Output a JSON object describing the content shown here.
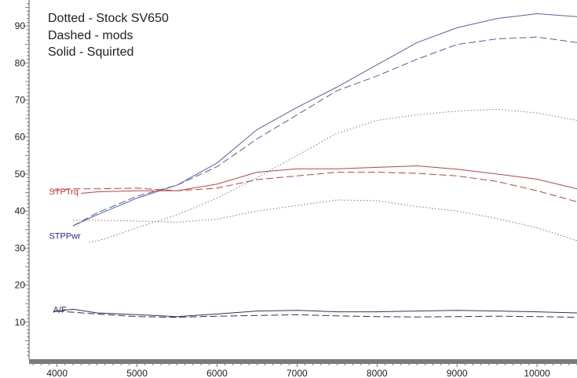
{
  "legend": {
    "line1": "Dotted - Stock SV650",
    "line2": "Dashed - mods",
    "line3": "Solid - Squirted"
  },
  "chart_data": {
    "type": "line",
    "title": "",
    "xlabel": "",
    "ylabel": "",
    "xlim": [
      3650,
      10500
    ],
    "ylim": [
      0,
      97
    ],
    "xticks": [
      4000,
      5000,
      6000,
      7000,
      8000,
      9000,
      10000
    ],
    "yticks": [
      10,
      20,
      30,
      40,
      50,
      60,
      70,
      80,
      90
    ],
    "grid": false,
    "legend": "top-left",
    "curve_labels": [
      {
        "text": "STPTrq",
        "x": 3900,
        "y": 45.3,
        "color": "#cc3333"
      },
      {
        "text": "STPPwr",
        "x": 3900,
        "y": 33.4,
        "color": "#2a2a9a"
      },
      {
        "text": "A/F",
        "x": 3950,
        "y": 13.5,
        "color": "#333366"
      }
    ],
    "series": [
      {
        "group": "power",
        "style": "solid",
        "color": "#5560a8",
        "x": [
          4200,
          4500,
          5000,
          5500,
          6000,
          6500,
          7000,
          7500,
          8000,
          8500,
          9000,
          9500,
          10000,
          10500
        ],
        "y": [
          36,
          39,
          43.5,
          47,
          53,
          62,
          68,
          73.5,
          79.5,
          85.5,
          89.5,
          92,
          93.3,
          92.5
        ]
      },
      {
        "group": "power",
        "style": "dashed",
        "color": "#5560a8",
        "x": [
          4200,
          4500,
          5000,
          5500,
          6000,
          6500,
          7000,
          7500,
          8000,
          8500,
          9000,
          9500,
          10000,
          10500
        ],
        "y": [
          36,
          39.5,
          44,
          47,
          52,
          59.5,
          66,
          72.5,
          76.5,
          81,
          85,
          86.5,
          87,
          85.5
        ]
      },
      {
        "group": "power",
        "style": "dotted",
        "color": "#7a7ab8",
        "x": [
          4400,
          4600,
          5000,
          5500,
          6000,
          6500,
          7000,
          7500,
          8000,
          8500,
          9000,
          9500,
          10000,
          10500
        ],
        "y": [
          31.5,
          32.5,
          35.5,
          39,
          43.5,
          49,
          55,
          61,
          64.5,
          66,
          67,
          67.5,
          66.5,
          64.5
        ]
      },
      {
        "group": "torque",
        "style": "solid",
        "color": "#c04040",
        "x": [
          4300,
          4500,
          5000,
          5500,
          6000,
          6500,
          7000,
          7500,
          8000,
          8500,
          9000,
          9500,
          10000,
          10500
        ],
        "y": [
          44.8,
          45.2,
          45.5,
          45.5,
          47.3,
          50.5,
          51.4,
          51.4,
          51.8,
          52.2,
          51.3,
          50,
          48.6,
          46
        ]
      },
      {
        "group": "torque",
        "style": "dashed",
        "color": "#c04040",
        "x": [
          3950,
          4200,
          4500,
          5000,
          5500,
          6000,
          6500,
          7000,
          7500,
          8000,
          8500,
          9000,
          9500,
          10000,
          10500
        ],
        "y": [
          45.5,
          46,
          46,
          46.2,
          45.5,
          46.2,
          48.5,
          49.5,
          50.5,
          50.5,
          50.2,
          49.5,
          48,
          45.5,
          42.5
        ]
      },
      {
        "group": "torque",
        "style": "dotted",
        "color": "#c06060",
        "x": [
          4200,
          4500,
          5000,
          5500,
          6000,
          6500,
          7000,
          7500,
          8000,
          8500,
          9000,
          9500,
          10000,
          10500
        ],
        "y": [
          37.5,
          37.5,
          37.3,
          37,
          37.8,
          40,
          41.5,
          43,
          42.8,
          41.2,
          40,
          38,
          35.5,
          32
        ]
      },
      {
        "group": "af",
        "style": "solid",
        "color": "#33335a",
        "x": [
          3950,
          4200,
          4500,
          5000,
          5500,
          6000,
          6500,
          7000,
          7500,
          8000,
          8500,
          9000,
          9500,
          10000,
          10500
        ],
        "y": [
          12.8,
          13.5,
          12.5,
          12,
          11.5,
          12.2,
          13,
          13.2,
          12.8,
          12.8,
          13,
          13.2,
          13,
          12.8,
          12.5
        ]
      },
      {
        "group": "af",
        "style": "dashed",
        "color": "#33335a",
        "x": [
          4000,
          4500,
          5000,
          5500,
          6000,
          6500,
          7000,
          7500,
          8000,
          8500,
          9000,
          9500,
          10000,
          10500
        ],
        "y": [
          13,
          12.2,
          11.5,
          11.3,
          11.6,
          11.8,
          12,
          11.7,
          11.5,
          11.4,
          11.5,
          11.6,
          11.5,
          11.3
        ]
      }
    ]
  }
}
